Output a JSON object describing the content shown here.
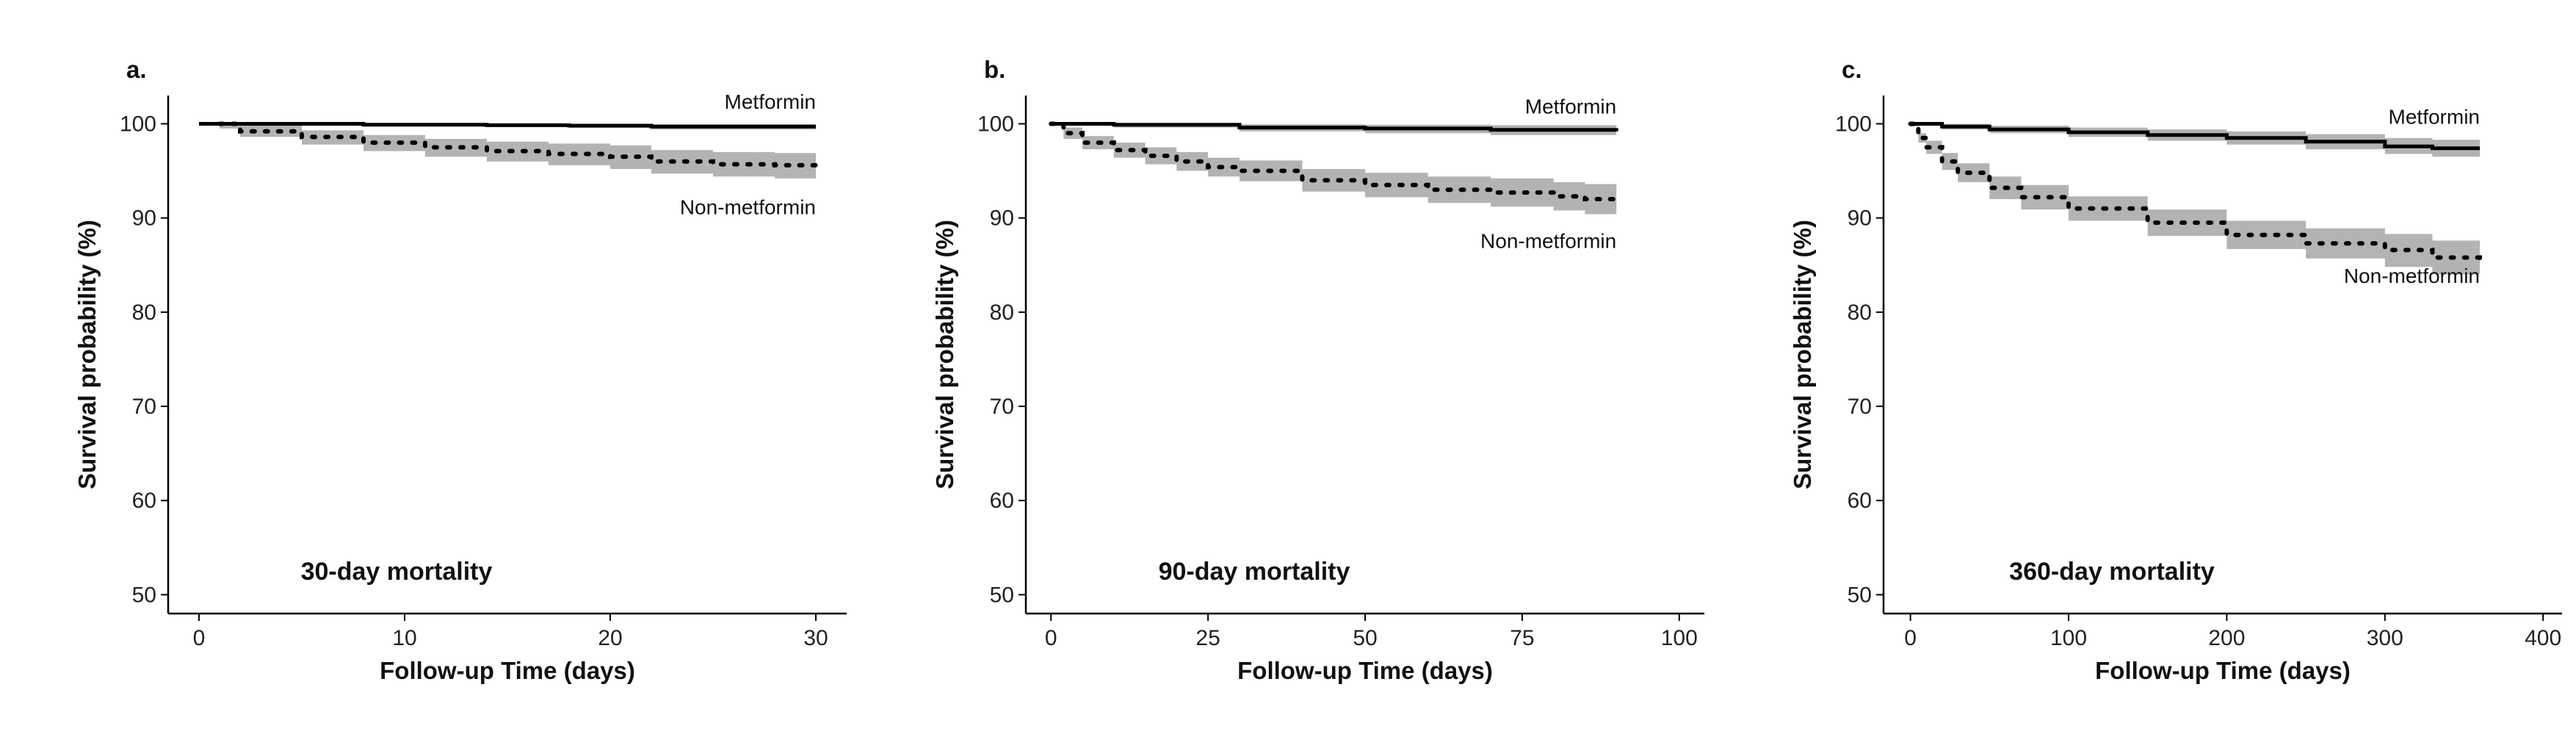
{
  "colors": {
    "axis": "#000000",
    "line": "#000000",
    "band": "#b3b3b3",
    "background": "#ffffff"
  },
  "chart_data": [
    {
      "type": "line",
      "panel_label": "a.",
      "title": "30-day mortality",
      "xlabel": "Follow-up Time (days)",
      "ylabel": "Survival probability (%)",
      "xlim": [
        -1.5,
        31.5
      ],
      "ylim": [
        48,
        103
      ],
      "xticks": [
        0,
        10,
        20,
        30
      ],
      "xtick_labels": [
        "0",
        "10",
        "20",
        "30"
      ],
      "yticks": [
        50,
        60,
        70,
        80,
        90,
        100
      ],
      "ytick_labels": [
        "50",
        "60",
        "70",
        "80",
        "90",
        "100"
      ],
      "series": [
        {
          "name": "Metformin",
          "label": "Metformin",
          "line_style": "solid",
          "x": [
            0,
            8,
            14,
            18,
            22,
            30
          ],
          "y": [
            100,
            99.9,
            99.85,
            99.8,
            99.7,
            99.7
          ],
          "lower": [
            99.9,
            99.75,
            99.65,
            99.55,
            99.4,
            99.35
          ],
          "upper": [
            100,
            100,
            100,
            99.98,
            99.95,
            99.95
          ]
        },
        {
          "name": "Non-metformin",
          "label": "Non-metformin",
          "line_style": "dotted",
          "x": [
            1,
            2,
            5,
            8,
            11,
            14,
            17,
            20,
            22,
            25,
            28,
            30
          ],
          "y": [
            100,
            99.2,
            98.6,
            98.0,
            97.5,
            97.1,
            96.8,
            96.5,
            96.0,
            95.7,
            95.6,
            95.5
          ],
          "lower": [
            99.5,
            98.6,
            97.8,
            97.1,
            96.5,
            96.0,
            95.6,
            95.2,
            94.7,
            94.4,
            94.2,
            94.0
          ],
          "upper": [
            100,
            99.8,
            99.3,
            98.8,
            98.4,
            98.1,
            97.9,
            97.7,
            97.2,
            97.0,
            96.9,
            96.8
          ]
        }
      ]
    },
    {
      "type": "line",
      "panel_label": "b.",
      "title": "90-day mortality",
      "xlabel": "Follow-up Time (days)",
      "ylabel": "Survival probability (%)",
      "xlim": [
        -4,
        104
      ],
      "ylim": [
        48,
        103
      ],
      "xticks": [
        0,
        25,
        50,
        75,
        100
      ],
      "xtick_labels": [
        "0",
        "25",
        "50",
        "75",
        "100"
      ],
      "yticks": [
        50,
        60,
        70,
        80,
        90,
        100
      ],
      "ytick_labels": [
        "50",
        "60",
        "70",
        "80",
        "90",
        "100"
      ],
      "series": [
        {
          "name": "Metformin",
          "label": "Metformin",
          "line_style": "solid",
          "x": [
            0,
            10,
            30,
            50,
            70,
            90
          ],
          "y": [
            100,
            99.9,
            99.6,
            99.5,
            99.35,
            99.2
          ],
          "lower": [
            99.9,
            99.6,
            99.2,
            99.0,
            98.8,
            98.5
          ],
          "upper": [
            100,
            100,
            99.95,
            99.9,
            99.85,
            99.8
          ]
        },
        {
          "name": "Non-metformin",
          "label": "Non-metformin",
          "line_style": "dotted",
          "x": [
            0,
            2,
            5,
            10,
            15,
            20,
            25,
            30,
            40,
            50,
            60,
            70,
            80,
            85,
            90
          ],
          "y": [
            100,
            99.0,
            98.0,
            97.2,
            96.6,
            96.0,
            95.4,
            95.0,
            94.0,
            93.5,
            93.0,
            92.7,
            92.3,
            92.0,
            91.5
          ],
          "lower": [
            99.8,
            98.4,
            97.3,
            96.4,
            95.7,
            95.0,
            94.4,
            93.9,
            92.8,
            92.2,
            91.6,
            91.2,
            90.8,
            90.4,
            89.8
          ],
          "upper": [
            100,
            99.6,
            98.7,
            98.0,
            97.5,
            97.0,
            96.4,
            96.1,
            95.2,
            94.8,
            94.4,
            94.2,
            93.8,
            93.6,
            93.2
          ]
        }
      ]
    },
    {
      "type": "line",
      "panel_label": "c.",
      "title": "360-day mortality",
      "xlabel": "Follow-up Time (days)",
      "ylabel": "Survival probability (%)",
      "xlim": [
        -17,
        412
      ],
      "ylim": [
        48,
        103
      ],
      "xticks": [
        0,
        100,
        200,
        300,
        400
      ],
      "xtick_labels": [
        "0",
        "100",
        "200",
        "300",
        "400"
      ],
      "yticks": [
        50,
        60,
        70,
        80,
        90,
        100
      ],
      "ytick_labels": [
        "50",
        "60",
        "70",
        "80",
        "90",
        "100"
      ],
      "series": [
        {
          "name": "Metformin",
          "label": "Metformin",
          "line_style": "solid",
          "x": [
            0,
            20,
            50,
            100,
            150,
            200,
            250,
            300,
            330,
            360
          ],
          "y": [
            100,
            99.7,
            99.4,
            99.1,
            98.8,
            98.5,
            98.1,
            97.6,
            97.4,
            97.4
          ],
          "lower": [
            99.9,
            99.4,
            99.0,
            98.6,
            98.2,
            97.8,
            97.3,
            96.8,
            96.5,
            96.4
          ],
          "upper": [
            100,
            100,
            99.8,
            99.6,
            99.4,
            99.2,
            98.9,
            98.5,
            98.3,
            98.3
          ]
        },
        {
          "name": "Non-metformin",
          "label": "Non-metformin",
          "line_style": "dotted",
          "x": [
            0,
            5,
            10,
            20,
            30,
            50,
            70,
            100,
            150,
            200,
            250,
            300,
            330,
            360
          ],
          "y": [
            100,
            98.5,
            97.5,
            96.0,
            94.8,
            93.2,
            92.2,
            91.0,
            89.5,
            88.2,
            87.3,
            86.6,
            85.8,
            85.2
          ],
          "lower": [
            99.7,
            98.0,
            96.8,
            95.1,
            93.8,
            92.0,
            90.9,
            89.7,
            88.1,
            86.7,
            85.7,
            84.8,
            84.0,
            83.3
          ],
          "upper": [
            100,
            99.0,
            98.2,
            96.9,
            95.8,
            94.4,
            93.5,
            92.3,
            90.9,
            89.7,
            88.9,
            88.3,
            87.6,
            87.0
          ]
        }
      ]
    }
  ]
}
